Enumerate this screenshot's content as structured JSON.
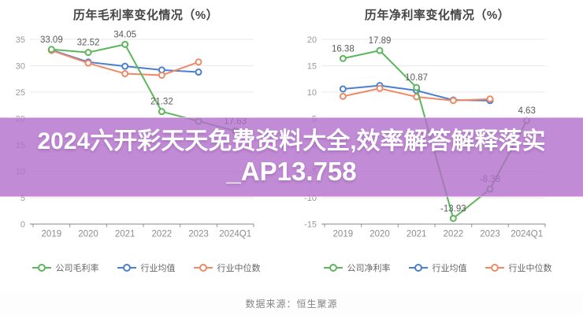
{
  "watermark": {
    "line1": "2024六开彩天天免费资料大全,效率解答解释落实",
    "line2": "_AP13.758",
    "band_color": "rgba(177,110,203,0.8)",
    "text_color": "#ffffff"
  },
  "footer": {
    "source_label": "数据来源：恒生聚源"
  },
  "colors": {
    "company": "#5cb75c",
    "industry_mean": "#4d7fd0",
    "industry_median": "#ef8a67",
    "grid": "#e9e9e9",
    "axis": "#8f8f8f",
    "tick_label": "#999999",
    "x_label": "#8c8c8c",
    "data_label": "#5a5a5a"
  },
  "chart_data": [
    {
      "type": "line",
      "title": "历年毛利率变化情况（%）",
      "categories": [
        "2019",
        "2020",
        "2021",
        "2022",
        "2023",
        "2024Q1"
      ],
      "ylim": [
        0,
        35
      ],
      "ytick_step": 5,
      "grid": true,
      "legend_position": "bottom",
      "series": [
        {
          "name": "公司毛利率",
          "color_key": "company",
          "values": [
            33.09,
            32.52,
            34.05,
            21.32,
            19.5,
            17.63
          ],
          "labels": [
            "33.09",
            "32.52",
            "34.05",
            "21.32",
            "",
            "17.63"
          ]
        },
        {
          "name": "行业均值",
          "color_key": "industry_mean",
          "values": [
            33.0,
            30.7,
            29.9,
            29.2,
            28.8,
            null
          ]
        },
        {
          "name": "行业中位数",
          "color_key": "industry_median",
          "values": [
            32.9,
            30.5,
            28.5,
            28.2,
            30.7,
            null
          ]
        }
      ]
    },
    {
      "type": "line",
      "title": "历年净利率变化情况（%）",
      "categories": [
        "2019",
        "2020",
        "2021",
        "2022",
        "2023",
        "2024Q1"
      ],
      "ylim": [
        -15,
        20
      ],
      "ytick_step": 5,
      "grid": true,
      "legend_position": "bottom",
      "series": [
        {
          "name": "公司净利率",
          "color_key": "company",
          "values": [
            16.38,
            17.89,
            10.87,
            -13.93,
            -8.38,
            4.63
          ],
          "labels": [
            "16.38",
            "17.89",
            "10.87",
            "-13.93",
            "-8.38",
            "4.63"
          ]
        },
        {
          "name": "行业均值",
          "color_key": "industry_mean",
          "values": [
            10.6,
            11.25,
            10.3,
            8.5,
            8.4,
            null
          ]
        },
        {
          "name": "行业中位数",
          "color_key": "industry_median",
          "values": [
            9.2,
            10.7,
            9.1,
            8.4,
            8.7,
            null
          ]
        }
      ]
    }
  ]
}
